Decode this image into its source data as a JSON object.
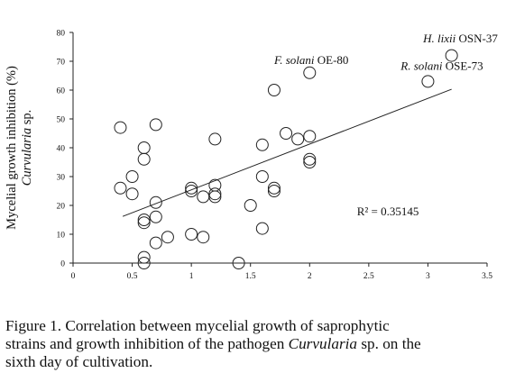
{
  "chart_data": {
    "type": "scatter",
    "title": "",
    "xlabel": "",
    "ylabel_line1": "Mycelial growth inhibition (%)",
    "ylabel_line2": "Curvularia sp.",
    "xlim": [
      0,
      3.5
    ],
    "ylim": [
      0,
      80
    ],
    "xticks": [
      "0",
      "0.5",
      "1",
      "1.5",
      "2",
      "2.5",
      "3",
      "3.5"
    ],
    "yticks": [
      "0",
      "10",
      "20",
      "30",
      "40",
      "50",
      "60",
      "70",
      "80"
    ],
    "grid": false,
    "points": [
      {
        "x": 0.4,
        "y": 47
      },
      {
        "x": 0.4,
        "y": 26
      },
      {
        "x": 0.5,
        "y": 30
      },
      {
        "x": 0.5,
        "y": 24
      },
      {
        "x": 0.6,
        "y": 40
      },
      {
        "x": 0.6,
        "y": 36
      },
      {
        "x": 0.6,
        "y": 15
      },
      {
        "x": 0.6,
        "y": 14
      },
      {
        "x": 0.6,
        "y": 2
      },
      {
        "x": 0.6,
        "y": 0
      },
      {
        "x": 0.7,
        "y": 48
      },
      {
        "x": 0.7,
        "y": 21
      },
      {
        "x": 0.7,
        "y": 16
      },
      {
        "x": 0.7,
        "y": 7
      },
      {
        "x": 0.8,
        "y": 9
      },
      {
        "x": 1.0,
        "y": 26
      },
      {
        "x": 1.0,
        "y": 25
      },
      {
        "x": 1.0,
        "y": 10
      },
      {
        "x": 1.1,
        "y": 23
      },
      {
        "x": 1.1,
        "y": 9
      },
      {
        "x": 1.2,
        "y": 43
      },
      {
        "x": 1.2,
        "y": 27
      },
      {
        "x": 1.2,
        "y": 24
      },
      {
        "x": 1.2,
        "y": 23
      },
      {
        "x": 1.4,
        "y": 0
      },
      {
        "x": 1.5,
        "y": 20
      },
      {
        "x": 1.6,
        "y": 41
      },
      {
        "x": 1.6,
        "y": 30
      },
      {
        "x": 1.6,
        "y": 12
      },
      {
        "x": 1.7,
        "y": 60
      },
      {
        "x": 1.7,
        "y": 26
      },
      {
        "x": 1.7,
        "y": 25
      },
      {
        "x": 1.8,
        "y": 45
      },
      {
        "x": 1.9,
        "y": 43
      },
      {
        "x": 2.0,
        "y": 66
      },
      {
        "x": 2.0,
        "y": 44
      },
      {
        "x": 2.0,
        "y": 36
      },
      {
        "x": 2.0,
        "y": 35
      },
      {
        "x": 3.0,
        "y": 63
      },
      {
        "x": 3.2,
        "y": 72
      }
    ],
    "trendline": {
      "x1": 0.42,
      "y1": 16.2,
      "x2": 3.2,
      "y2": 60.3
    },
    "r_squared_label": "R² = 0.35145",
    "annotations": [
      {
        "italic": "F. solani",
        "rest": " OE-80",
        "x": 1.7,
        "y": 69
      },
      {
        "italic": "H. lixii",
        "rest": " OSN-37",
        "x": 2.96,
        "y": 76.5
      },
      {
        "italic": "R. solani",
        "rest": " OSE-73",
        "x": 2.77,
        "y": 67
      }
    ]
  },
  "caption": {
    "line1": "Figure 1. Correlation between mycelial growth of saprophytic",
    "line2_a": "strains and growth inhibition of the pathogen ",
    "line2_italic": "Curvularia",
    "line2_b": " sp. on the",
    "line3": "sixth day of cultivation."
  }
}
